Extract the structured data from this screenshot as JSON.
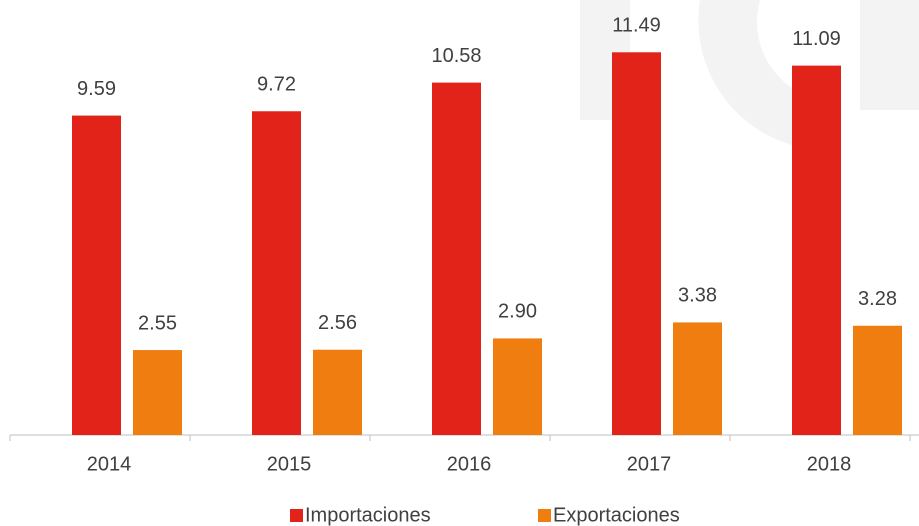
{
  "chart_data": {
    "type": "bar",
    "categories": [
      "2014",
      "2015",
      "2016",
      "2017",
      "2018"
    ],
    "series": [
      {
        "name": "Importaciones",
        "color": "#e2231a",
        "values": [
          9.59,
          9.72,
          10.58,
          11.49,
          11.09
        ],
        "value_labels": [
          "9.59",
          "9.72",
          "10.58",
          "11.49",
          "11.09"
        ]
      },
      {
        "name": "Exportaciones",
        "color": "#ef7d10",
        "values": [
          2.55,
          2.56,
          2.9,
          3.38,
          3.28
        ],
        "value_labels": [
          "2.55",
          "2.56",
          "2.90",
          "3.38",
          "3.28"
        ]
      }
    ],
    "ylim": [
      0,
      13
    ],
    "legend": "bottom"
  }
}
